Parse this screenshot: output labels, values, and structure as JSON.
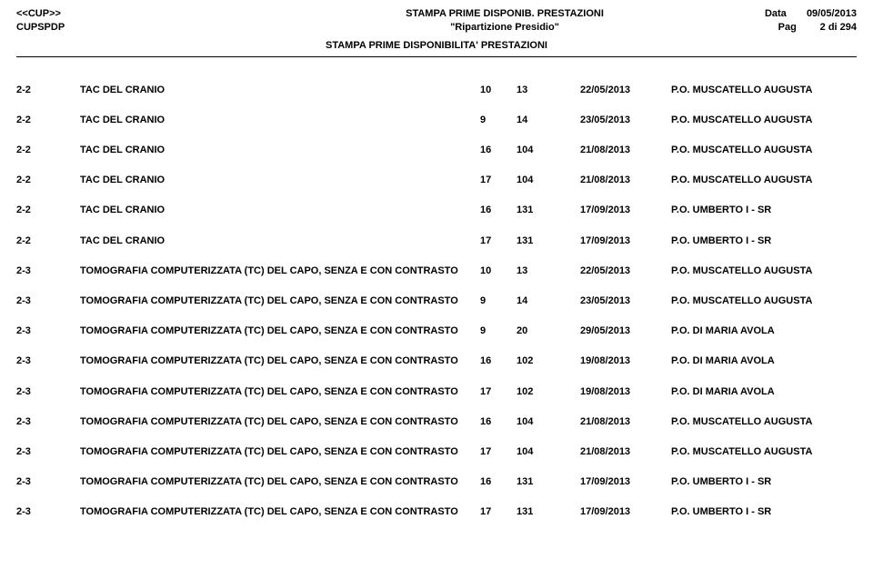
{
  "header": {
    "left1": "<<CUP>>",
    "left2": "CUPSPDP",
    "center1": "STAMPA PRIME DISPONIB. PRESTAZIONI",
    "center2": "\"Ripartizione Presidio\"",
    "subtitle": "STAMPA PRIME DISPONIBILITA' PRESTAZIONI",
    "dateLabel": "Data",
    "dateValue": "09/05/2013",
    "pageLabel": "Pag",
    "pageValue": "2 di 294"
  },
  "rows": [
    {
      "code": "2-2",
      "desc": "TAC DEL CRANIO",
      "n1": "10",
      "n2": "13",
      "date": "22/05/2013",
      "loc": "P.O. MUSCATELLO AUGUSTA"
    },
    {
      "code": "2-2",
      "desc": "TAC DEL CRANIO",
      "n1": "9",
      "n2": "14",
      "date": "23/05/2013",
      "loc": "P.O. MUSCATELLO AUGUSTA"
    },
    {
      "code": "2-2",
      "desc": "TAC DEL CRANIO",
      "n1": "16",
      "n2": "104",
      "date": "21/08/2013",
      "loc": "P.O. MUSCATELLO AUGUSTA"
    },
    {
      "code": "2-2",
      "desc": "TAC DEL CRANIO",
      "n1": "17",
      "n2": "104",
      "date": "21/08/2013",
      "loc": "P.O. MUSCATELLO AUGUSTA"
    },
    {
      "code": "2-2",
      "desc": "TAC DEL CRANIO",
      "n1": "16",
      "n2": "131",
      "date": "17/09/2013",
      "loc": "P.O. UMBERTO I - SR"
    },
    {
      "code": "2-2",
      "desc": "TAC DEL CRANIO",
      "n1": "17",
      "n2": "131",
      "date": "17/09/2013",
      "loc": "P.O. UMBERTO I - SR"
    },
    {
      "code": "2-3",
      "desc": "TOMOGRAFIA COMPUTERIZZATA (TC) DEL CAPO, SENZA E CON CONTRASTO",
      "n1": "10",
      "n2": "13",
      "date": "22/05/2013",
      "loc": "P.O. MUSCATELLO AUGUSTA"
    },
    {
      "code": "2-3",
      "desc": "TOMOGRAFIA COMPUTERIZZATA (TC) DEL CAPO, SENZA E CON CONTRASTO",
      "n1": "9",
      "n2": "14",
      "date": "23/05/2013",
      "loc": "P.O. MUSCATELLO AUGUSTA"
    },
    {
      "code": "2-3",
      "desc": "TOMOGRAFIA COMPUTERIZZATA (TC) DEL CAPO, SENZA E CON CONTRASTO",
      "n1": "9",
      "n2": "20",
      "date": "29/05/2013",
      "loc": "P.O. DI MARIA AVOLA"
    },
    {
      "code": "2-3",
      "desc": "TOMOGRAFIA COMPUTERIZZATA (TC) DEL CAPO, SENZA E CON CONTRASTO",
      "n1": "16",
      "n2": "102",
      "date": "19/08/2013",
      "loc": "P.O. DI MARIA AVOLA"
    },
    {
      "code": "2-3",
      "desc": "TOMOGRAFIA COMPUTERIZZATA (TC) DEL CAPO, SENZA E CON CONTRASTO",
      "n1": "17",
      "n2": "102",
      "date": "19/08/2013",
      "loc": "P.O. DI MARIA AVOLA"
    },
    {
      "code": "2-3",
      "desc": "TOMOGRAFIA COMPUTERIZZATA (TC) DEL CAPO, SENZA E CON CONTRASTO",
      "n1": "16",
      "n2": "104",
      "date": "21/08/2013",
      "loc": "P.O. MUSCATELLO AUGUSTA"
    },
    {
      "code": "2-3",
      "desc": "TOMOGRAFIA COMPUTERIZZATA (TC) DEL CAPO, SENZA E CON CONTRASTO",
      "n1": "17",
      "n2": "104",
      "date": "21/08/2013",
      "loc": "P.O. MUSCATELLO AUGUSTA"
    },
    {
      "code": "2-3",
      "desc": "TOMOGRAFIA COMPUTERIZZATA (TC) DEL CAPO, SENZA E CON CONTRASTO",
      "n1": "16",
      "n2": "131",
      "date": "17/09/2013",
      "loc": "P.O. UMBERTO I - SR"
    },
    {
      "code": "2-3",
      "desc": "TOMOGRAFIA COMPUTERIZZATA (TC) DEL CAPO, SENZA E CON CONTRASTO",
      "n1": "17",
      "n2": "131",
      "date": "17/09/2013",
      "loc": "P.O. UMBERTO I - SR"
    }
  ]
}
